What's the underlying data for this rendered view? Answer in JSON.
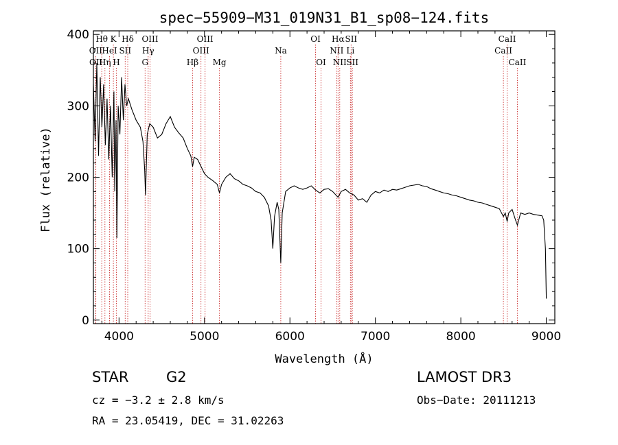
{
  "chart_data": {
    "type": "line",
    "title": "spec−55909−M31_019N31_B1_sp08−124.fits",
    "xlabel": "Wavelength (Å)",
    "ylabel": "Flux (relative)",
    "xlim": [
      3700,
      9100
    ],
    "ylim": [
      -5,
      405
    ],
    "xticks": [
      4000,
      5000,
      6000,
      7000,
      8000,
      9000
    ],
    "yticks": [
      0,
      100,
      200,
      300,
      400
    ],
    "series": [
      {
        "name": "spectrum",
        "points": [
          [
            3700,
            330
          ],
          [
            3720,
            250
          ],
          [
            3740,
            360
          ],
          [
            3760,
            230
          ],
          [
            3780,
            340
          ],
          [
            3800,
            270
          ],
          [
            3820,
            330
          ],
          [
            3840,
            245
          ],
          [
            3860,
            310
          ],
          [
            3880,
            225
          ],
          [
            3900,
            300
          ],
          [
            3920,
            200
          ],
          [
            3940,
            320
          ],
          [
            3950,
            180
          ],
          [
            3965,
            280
          ],
          [
            3975,
            115
          ],
          [
            3990,
            300
          ],
          [
            4010,
            260
          ],
          [
            4030,
            340
          ],
          [
            4050,
            280
          ],
          [
            4070,
            330
          ],
          [
            4090,
            300
          ],
          [
            4110,
            310
          ],
          [
            4150,
            295
          ],
          [
            4200,
            280
          ],
          [
            4250,
            270
          ],
          [
            4280,
            250
          ],
          [
            4300,
            210
          ],
          [
            4310,
            175
          ],
          [
            4330,
            260
          ],
          [
            4360,
            275
          ],
          [
            4400,
            270
          ],
          [
            4450,
            255
          ],
          [
            4500,
            260
          ],
          [
            4550,
            275
          ],
          [
            4600,
            285
          ],
          [
            4650,
            270
          ],
          [
            4700,
            262
          ],
          [
            4750,
            255
          ],
          [
            4800,
            240
          ],
          [
            4840,
            230
          ],
          [
            4861,
            215
          ],
          [
            4880,
            228
          ],
          [
            4920,
            225
          ],
          [
            4960,
            215
          ],
          [
            5000,
            205
          ],
          [
            5040,
            200
          ],
          [
            5100,
            195
          ],
          [
            5150,
            190
          ],
          [
            5175,
            178
          ],
          [
            5200,
            190
          ],
          [
            5250,
            200
          ],
          [
            5300,
            205
          ],
          [
            5350,
            198
          ],
          [
            5400,
            195
          ],
          [
            5450,
            190
          ],
          [
            5500,
            188
          ],
          [
            5550,
            185
          ],
          [
            5600,
            180
          ],
          [
            5650,
            178
          ],
          [
            5700,
            172
          ],
          [
            5750,
            160
          ],
          [
            5780,
            140
          ],
          [
            5800,
            100
          ],
          [
            5820,
            145
          ],
          [
            5850,
            165
          ],
          [
            5870,
            155
          ],
          [
            5893,
            80
          ],
          [
            5910,
            150
          ],
          [
            5950,
            180
          ],
          [
            6000,
            185
          ],
          [
            6050,
            188
          ],
          [
            6100,
            185
          ],
          [
            6150,
            183
          ],
          [
            6200,
            185
          ],
          [
            6250,
            188
          ],
          [
            6300,
            182
          ],
          [
            6350,
            178
          ],
          [
            6400,
            183
          ],
          [
            6450,
            184
          ],
          [
            6500,
            180
          ],
          [
            6563,
            172
          ],
          [
            6600,
            180
          ],
          [
            6650,
            183
          ],
          [
            6700,
            178
          ],
          [
            6750,
            175
          ],
          [
            6800,
            168
          ],
          [
            6850,
            170
          ],
          [
            6900,
            165
          ],
          [
            6950,
            175
          ],
          [
            7000,
            180
          ],
          [
            7050,
            178
          ],
          [
            7100,
            182
          ],
          [
            7150,
            180
          ],
          [
            7200,
            183
          ],
          [
            7250,
            182
          ],
          [
            7300,
            184
          ],
          [
            7350,
            186
          ],
          [
            7400,
            188
          ],
          [
            7450,
            189
          ],
          [
            7500,
            190
          ],
          [
            7550,
            188
          ],
          [
            7600,
            187
          ],
          [
            7650,
            184
          ],
          [
            7700,
            182
          ],
          [
            7750,
            180
          ],
          [
            7800,
            178
          ],
          [
            7850,
            177
          ],
          [
            7900,
            175
          ],
          [
            7950,
            174
          ],
          [
            8000,
            172
          ],
          [
            8050,
            170
          ],
          [
            8100,
            168
          ],
          [
            8150,
            167
          ],
          [
            8200,
            165
          ],
          [
            8250,
            164
          ],
          [
            8300,
            162
          ],
          [
            8350,
            160
          ],
          [
            8400,
            158
          ],
          [
            8450,
            156
          ],
          [
            8498,
            145
          ],
          [
            8520,
            150
          ],
          [
            8542,
            138
          ],
          [
            8560,
            150
          ],
          [
            8600,
            155
          ],
          [
            8640,
            140
          ],
          [
            8662,
            133
          ],
          [
            8700,
            150
          ],
          [
            8750,
            148
          ],
          [
            8800,
            150
          ],
          [
            8850,
            148
          ],
          [
            8900,
            147
          ],
          [
            8950,
            146
          ],
          [
            8970,
            140
          ],
          [
            8990,
            100
          ],
          [
            9000,
            30
          ]
        ]
      }
    ],
    "line_markers": [
      {
        "label": "Hθ",
        "wavelength": 3798,
        "row": 0
      },
      {
        "label": "OII",
        "wavelength": 3727,
        "row": 1
      },
      {
        "label": "OII",
        "wavelength": 3729,
        "row": 2
      },
      {
        "label": "Hη",
        "wavelength": 3835,
        "row": 2
      },
      {
        "label": "HeI",
        "wavelength": 3889,
        "row": 1
      },
      {
        "label": "K",
        "wavelength": 3934,
        "row": 0
      },
      {
        "label": "H",
        "wavelength": 3969,
        "row": 2
      },
      {
        "label": "SII",
        "wavelength": 4072,
        "row": 1
      },
      {
        "label": "Hδ",
        "wavelength": 4102,
        "row": 0
      },
      {
        "label": "G",
        "wavelength": 4305,
        "row": 2
      },
      {
        "label": "Hγ",
        "wavelength": 4341,
        "row": 1
      },
      {
        "label": "OIII",
        "wavelength": 4363,
        "row": 0
      },
      {
        "label": "Hβ",
        "wavelength": 4861,
        "row": 2
      },
      {
        "label": "OIII",
        "wavelength": 4959,
        "row": 1
      },
      {
        "label": "OIII",
        "wavelength": 5007,
        "row": 0
      },
      {
        "label": "Mg",
        "wavelength": 5175,
        "row": 2
      },
      {
        "label": "Na",
        "wavelength": 5893,
        "row": 1
      },
      {
        "label": "OI",
        "wavelength": 6300,
        "row": 0
      },
      {
        "label": "OI",
        "wavelength": 6364,
        "row": 2
      },
      {
        "label": "NII",
        "wavelength": 6548,
        "row": 1
      },
      {
        "label": "Hα",
        "wavelength": 6563,
        "row": 0
      },
      {
        "label": "NII",
        "wavelength": 6583,
        "row": 2
      },
      {
        "label": "Li",
        "wavelength": 6708,
        "row": 1
      },
      {
        "label": "SII",
        "wavelength": 6716,
        "row": 0
      },
      {
        "label": "SII",
        "wavelength": 6731,
        "row": 2
      },
      {
        "label": "CaII",
        "wavelength": 8498,
        "row": 1
      },
      {
        "label": "CaII",
        "wavelength": 8542,
        "row": 0
      },
      {
        "label": "CaII",
        "wavelength": 8662,
        "row": 2
      }
    ],
    "colors": {
      "line": "#000000",
      "marker": "#cc3333"
    },
    "grid": false
  },
  "info": {
    "object_class": "STAR",
    "subclass": "G2",
    "survey": "LAMOST DR3",
    "cz": "cz = −3.2 ± 2.8 km/s",
    "obs_date": "Obs−Date: 20111213",
    "coords": "RA =  23.05419, DEC =  31.02263"
  }
}
